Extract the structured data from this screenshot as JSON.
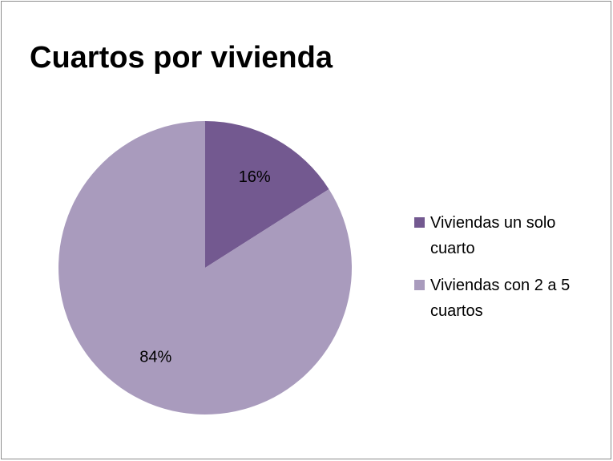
{
  "chart_data": {
    "type": "pie",
    "title": "Cuartos por vivienda",
    "categories": [
      "Viviendas un solo cuarto",
      "Viviendas con 2 a 5 cuartos"
    ],
    "values": [
      16,
      84
    ],
    "value_labels": [
      "16%",
      "84%"
    ],
    "colors": [
      "#735990",
      "#a99bbd"
    ],
    "legend": "right"
  }
}
